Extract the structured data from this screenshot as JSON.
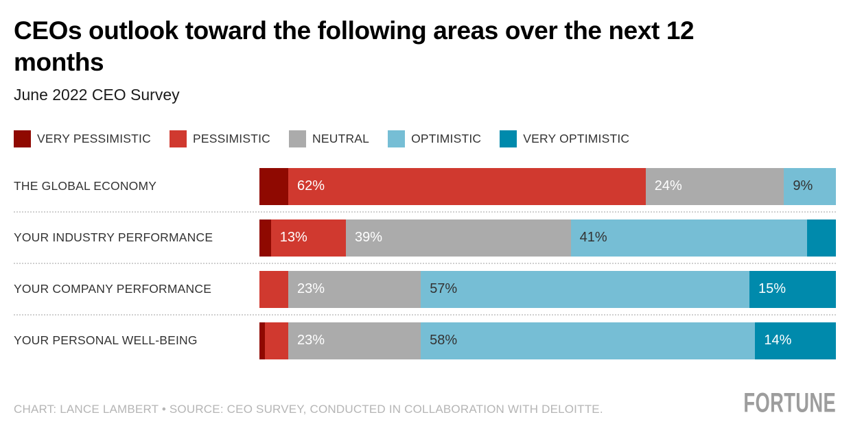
{
  "title": "CEOs outlook toward the following areas over the next 12 months",
  "subtitle": "June 2022 CEO Survey",
  "chart_data": {
    "type": "bar",
    "variant": "horizontal-stacked",
    "categories": [
      "THE GLOBAL ECONOMY",
      "YOUR INDUSTRY PERFORMANCE",
      "YOUR COMPANY PERFORMANCE",
      "YOUR PERSONAL WELL-BEING"
    ],
    "series": [
      {
        "name": "VERY PESSIMISTIC",
        "color": "#8F0901",
        "values": [
          5,
          2,
          0,
          1
        ]
      },
      {
        "name": "PESSIMISTIC",
        "color": "#D0392F",
        "values": [
          62,
          13,
          5,
          4
        ]
      },
      {
        "name": "NEUTRAL",
        "color": "#ABABAB",
        "values": [
          24,
          39,
          23,
          23
        ]
      },
      {
        "name": "OPTIMISTIC",
        "color": "#76BED5",
        "values": [
          9,
          41,
          57,
          58
        ]
      },
      {
        "name": "VERY OPTIMISTIC",
        "color": "#008AAC",
        "values": [
          0,
          5,
          15,
          14
        ]
      }
    ],
    "xlim": [
      0,
      100
    ],
    "label_format": "percent",
    "label_threshold": 9,
    "dark_label_series": "OPTIMISTIC",
    "legend_position": "top",
    "grid": false
  },
  "footer": {
    "credit": "CHART: LANCE LAMBERT • SOURCE: CEO SURVEY, CONDUCTED IN COLLABORATION WITH DELOITTE.",
    "logo": "FORTUNE"
  }
}
